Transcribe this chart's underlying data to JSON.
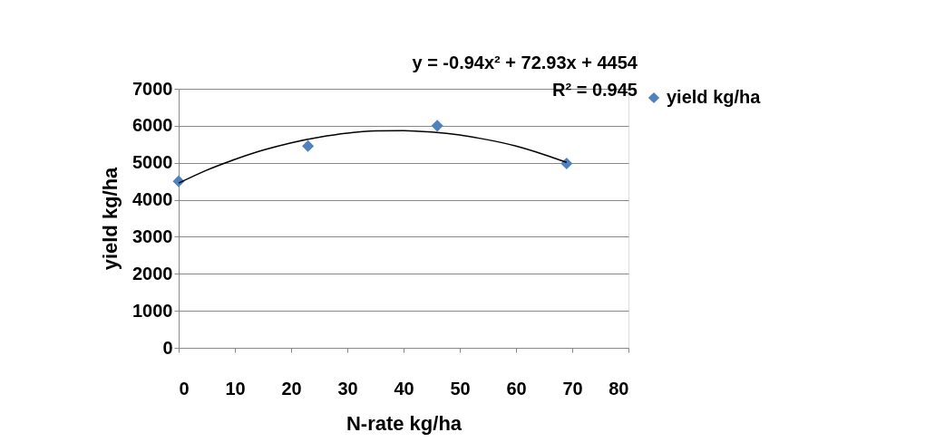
{
  "chart_data": {
    "type": "scatter",
    "xlabel": "N-rate kg/ha",
    "ylabel": "yield kg/ha",
    "x": [
      0,
      23,
      46,
      69
    ],
    "series": [
      {
        "name": "yield kg/ha",
        "color": "#4f81bd",
        "values": [
          4500,
          5450,
          6000,
          4980
        ]
      },
      {
        "type": "line",
        "color": "#000000",
        "marker": "none",
        "x": [
          0,
          5,
          10,
          15,
          20,
          25,
          30,
          35,
          40,
          45,
          50,
          55,
          60,
          65,
          69
        ],
        "values": [
          4450,
          4800,
          5090,
          5340,
          5540,
          5690,
          5800,
          5860,
          5870,
          5830,
          5750,
          5620,
          5450,
          5220,
          5010
        ]
      }
    ],
    "marker": "diamond",
    "xlim": [
      0,
      80
    ],
    "xticks": [
      0,
      10,
      20,
      30,
      40,
      50,
      60,
      70,
      80
    ],
    "ylim": [
      0,
      7000
    ],
    "yticks": [
      0,
      1000,
      2000,
      3000,
      4000,
      5000,
      6000,
      7000
    ],
    "grid": "y",
    "legend": "right",
    "annotations": [
      "y = -0.94x² + 72.93x + 4454",
      "R² = 0.945"
    ]
  }
}
